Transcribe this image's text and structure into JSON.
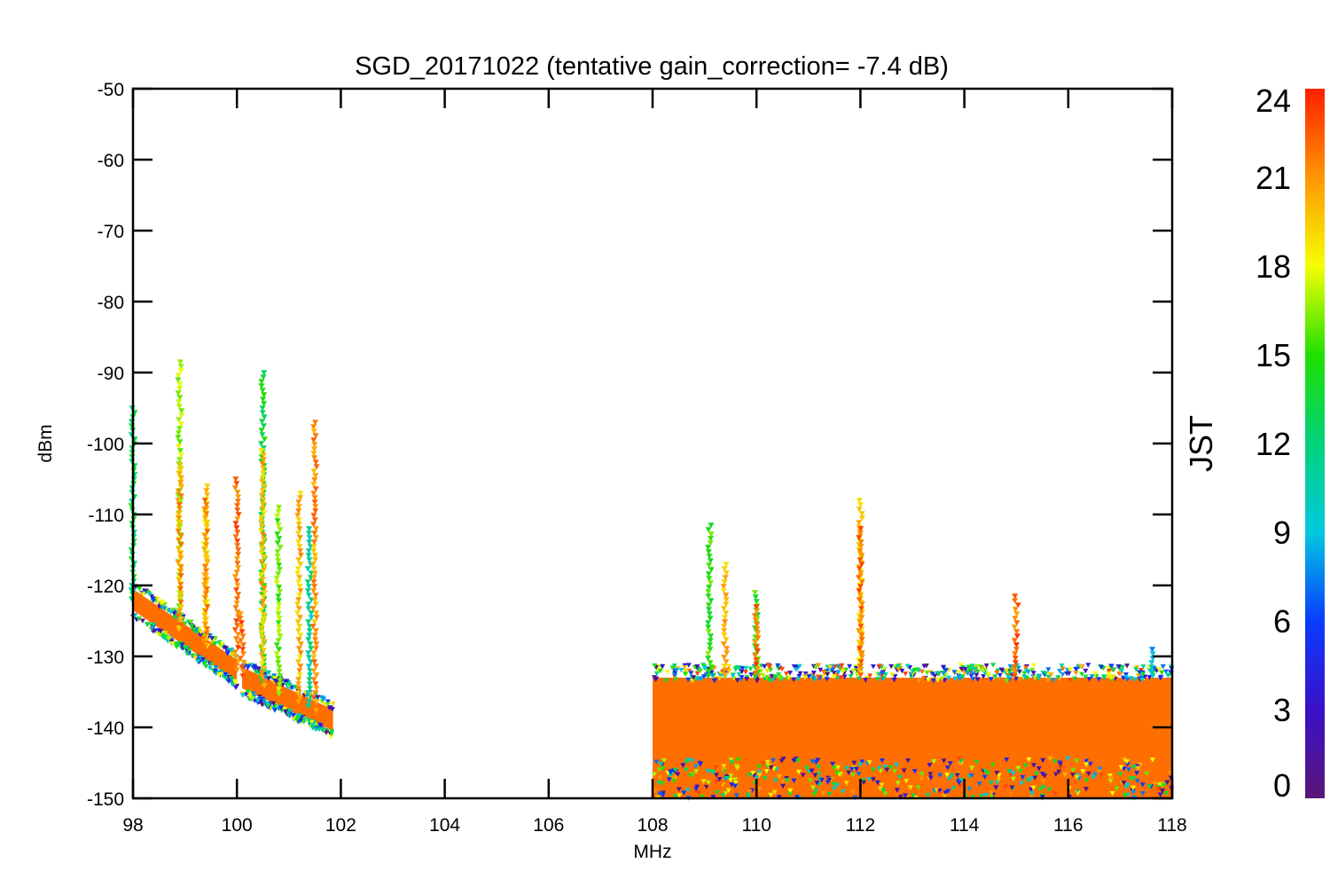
{
  "chart_data": {
    "type": "scatter",
    "title": "SGD_20171022 (tentative gain_correction= -7.4 dB)",
    "xlabel": "MHz",
    "ylabel": "dBm",
    "xlim": [
      98,
      118
    ],
    "ylim": [
      -150,
      -50
    ],
    "x_ticks": [
      "98",
      "100",
      "102",
      "104",
      "106",
      "108",
      "110",
      "112",
      "114",
      "116",
      "118"
    ],
    "y_ticks": [
      "-50",
      "-60",
      "-70",
      "-80",
      "-90",
      "-100",
      "-110",
      "-120",
      "-130",
      "-140",
      "-150"
    ],
    "marker": "inverted-triangle",
    "grid": false,
    "colorbar": {
      "label": "JST",
      "range": [
        0,
        24
      ],
      "ticks": [
        "0",
        "3",
        "6",
        "9",
        "12",
        "15",
        "18",
        "21",
        "24"
      ],
      "colormap": "rainbow"
    },
    "noise_floor": [
      {
        "x_start": 98.0,
        "x_end": 100.0,
        "y_start": -122,
        "y_end": -132,
        "jst": 22
      },
      {
        "x_start": 100.1,
        "x_end": 101.85,
        "y_start": -133,
        "y_end": -139,
        "jst": 22
      },
      {
        "x_start": 108.0,
        "x_end": 118.0,
        "y_top": -133,
        "y_bottom": -150,
        "jst": 22
      }
    ],
    "peaks": [
      {
        "x": 98.0,
        "y": -95,
        "jst": 13
      },
      {
        "x": 98.9,
        "y": -88.5,
        "jst": 17
      },
      {
        "x": 98.9,
        "y": -103,
        "jst": 21
      },
      {
        "x": 99.4,
        "y": -106,
        "jst": 19
      },
      {
        "x": 99.4,
        "y": -108,
        "jst": 21
      },
      {
        "x": 100.0,
        "y": -105,
        "jst": 22
      },
      {
        "x": 100.1,
        "y": -124,
        "jst": 22
      },
      {
        "x": 100.5,
        "y": -90,
        "jst": 14
      },
      {
        "x": 100.5,
        "y": -101,
        "jst": 20
      },
      {
        "x": 100.8,
        "y": -109,
        "jst": 16
      },
      {
        "x": 101.2,
        "y": -107,
        "jst": 20
      },
      {
        "x": 101.4,
        "y": -112,
        "jst": 11
      },
      {
        "x": 101.5,
        "y": -97,
        "jst": 21
      },
      {
        "x": 109.1,
        "y": -111.5,
        "jst": 15
      },
      {
        "x": 109.4,
        "y": -117,
        "jst": 20
      },
      {
        "x": 110.0,
        "y": -121,
        "jst": 15
      },
      {
        "x": 110.0,
        "y": -123,
        "jst": 22
      },
      {
        "x": 112.0,
        "y": -108,
        "jst": 19
      },
      {
        "x": 112.0,
        "y": -112,
        "jst": 22
      },
      {
        "x": 115.0,
        "y": -121.5,
        "jst": 22
      },
      {
        "x": 117.6,
        "y": -129,
        "jst": 9
      }
    ]
  }
}
